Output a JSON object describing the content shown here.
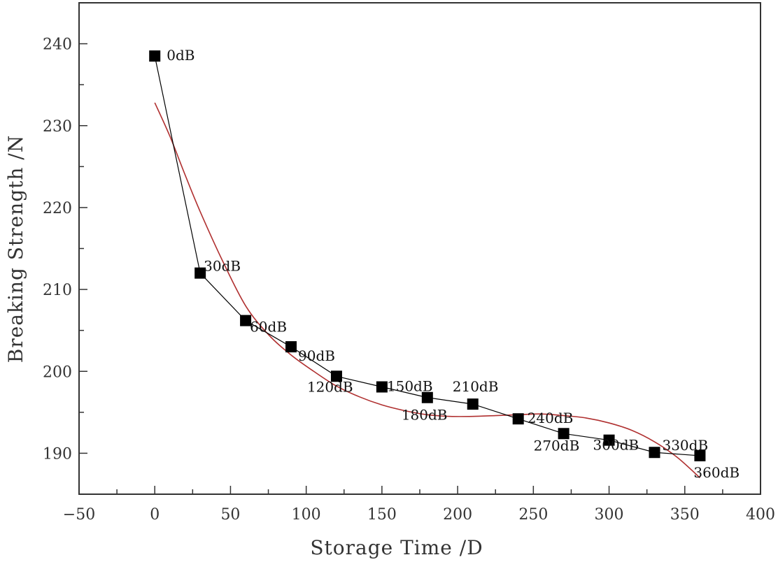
{
  "chart_data": {
    "type": "scatter",
    "title": "",
    "xlabel": "Storage Time /D",
    "ylabel": "Breaking Strength /N",
    "xlim": [
      -50,
      400
    ],
    "ylim": [
      185,
      245
    ],
    "x_major_ticks": [
      -50,
      0,
      50,
      100,
      150,
      200,
      250,
      300,
      350,
      400
    ],
    "y_major_ticks": [
      190,
      200,
      210,
      220,
      230,
      240
    ],
    "grid": false,
    "legend": "none",
    "series": [
      {
        "kind": "data",
        "marker": "square",
        "line_color": "#000000",
        "points": [
          {
            "x": 0,
            "y": 238.5,
            "label": "0dB"
          },
          {
            "x": 30,
            "y": 212.0,
            "label": "30dB"
          },
          {
            "x": 60,
            "y": 206.2,
            "label": "60dB"
          },
          {
            "x": 90,
            "y": 203.0,
            "label": "90dB"
          },
          {
            "x": 120,
            "y": 199.4,
            "label": "120dB"
          },
          {
            "x": 150,
            "y": 198.1,
            "label": "150dB"
          },
          {
            "x": 180,
            "y": 196.8,
            "label": "180dB"
          },
          {
            "x": 210,
            "y": 196.0,
            "label": "210dB"
          },
          {
            "x": 240,
            "y": 194.2,
            "label": "240dB"
          },
          {
            "x": 270,
            "y": 192.4,
            "label": "270dB"
          },
          {
            "x": 300,
            "y": 191.6,
            "label": "300dB"
          },
          {
            "x": 330,
            "y": 190.1,
            "label": "330dB"
          },
          {
            "x": 360,
            "y": 189.7,
            "label": "360dB"
          }
        ]
      },
      {
        "kind": "fit",
        "line_color": "#b03030",
        "points": [
          {
            "x": 0,
            "y": 232.8
          },
          {
            "x": 10,
            "y": 228.7
          },
          {
            "x": 20,
            "y": 224.0
          },
          {
            "x": 30,
            "y": 219.5
          },
          {
            "x": 45,
            "y": 213.4
          },
          {
            "x": 60,
            "y": 208.0
          },
          {
            "x": 75,
            "y": 204.5
          },
          {
            "x": 90,
            "y": 202.0
          },
          {
            "x": 105,
            "y": 200.0
          },
          {
            "x": 120,
            "y": 198.2
          },
          {
            "x": 135,
            "y": 196.9
          },
          {
            "x": 150,
            "y": 195.9
          },
          {
            "x": 165,
            "y": 195.2
          },
          {
            "x": 180,
            "y": 194.7
          },
          {
            "x": 195,
            "y": 194.5
          },
          {
            "x": 210,
            "y": 194.5
          },
          {
            "x": 225,
            "y": 194.6
          },
          {
            "x": 240,
            "y": 194.7
          },
          {
            "x": 255,
            "y": 194.8
          },
          {
            "x": 270,
            "y": 194.6
          },
          {
            "x": 285,
            "y": 194.3
          },
          {
            "x": 300,
            "y": 193.7
          },
          {
            "x": 315,
            "y": 192.8
          },
          {
            "x": 330,
            "y": 191.4
          },
          {
            "x": 345,
            "y": 189.5
          },
          {
            "x": 360,
            "y": 187.0
          }
        ]
      }
    ]
  }
}
